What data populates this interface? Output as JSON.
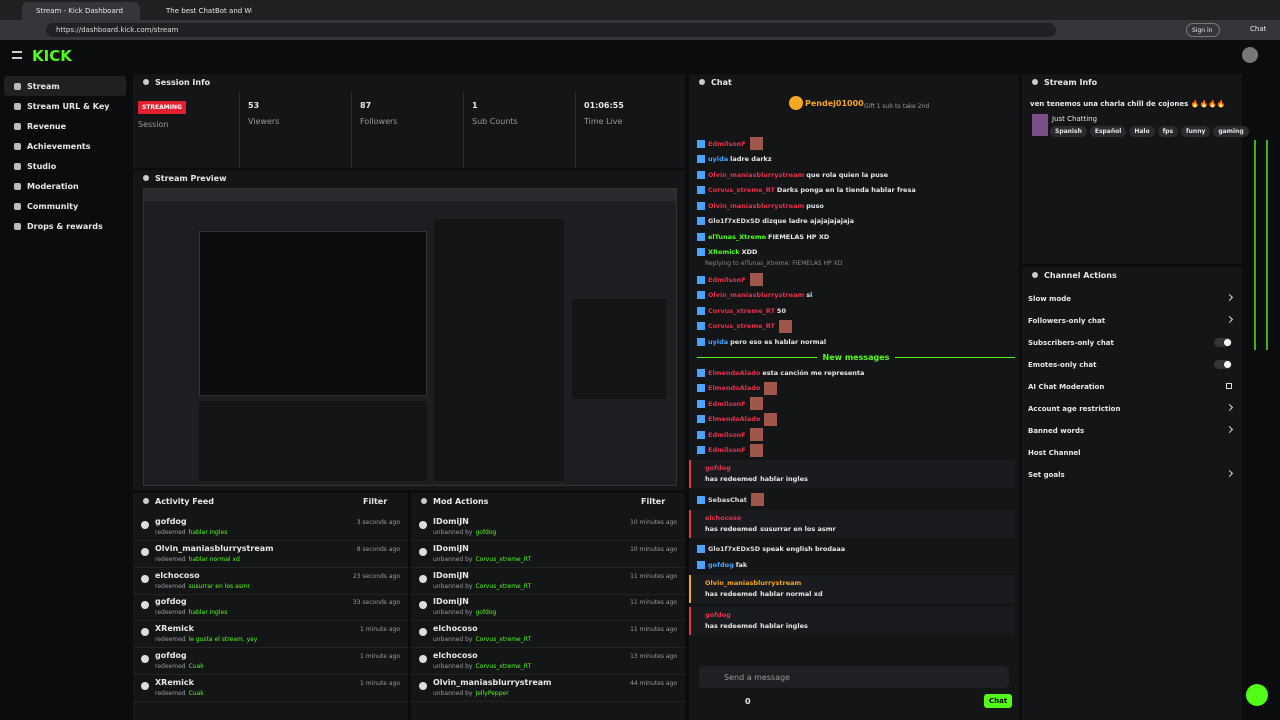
{
  "browser": {
    "tabs": [
      "Stream - Kick Dashboard",
      "The best ChatBot and Widgets"
    ],
    "url": "https://dashboard.kick.com/stream",
    "signin": "Sign in",
    "chat": "Chat"
  },
  "nav": [
    "Stream",
    "Stream URL & Key",
    "Revenue",
    "Achievements",
    "Studio",
    "Moderation",
    "Community",
    "Drops & rewards"
  ],
  "session": {
    "title": "Session Info",
    "status": "STREAMING",
    "status_label": "Session",
    "stats": [
      {
        "value": 53,
        "label": "Viewers"
      },
      {
        "value": 87,
        "label": "Followers"
      },
      {
        "value": 1,
        "label": "Sub Counts"
      },
      {
        "value": "01:06:55",
        "label": "Time Live"
      }
    ]
  },
  "preview": {
    "title": "Stream Preview"
  },
  "activity": {
    "title": "Activity Feed",
    "filter": "Filter",
    "verb": "redeemed",
    "items": [
      {
        "user": "gofdog",
        "reward": "hablar ingles",
        "time": "3 seconds ago"
      },
      {
        "user": "Olvin_maniasblurrystream",
        "reward": "hablar normal xd",
        "time": "8 seconds ago"
      },
      {
        "user": "elchocoso",
        "reward": "susurrar en los asmr",
        "time": "23 seconds ago"
      },
      {
        "user": "gofdog",
        "reward": "hablar ingles",
        "time": "33 seconds ago"
      },
      {
        "user": "XRemick",
        "reward": "le gusta el stream. yay",
        "time": "1 minute ago"
      },
      {
        "user": "gofdog",
        "reward": "Cuak",
        "time": "1 minute ago"
      },
      {
        "user": "XRemick",
        "reward": "Cuak",
        "time": "1 minute ago"
      }
    ]
  },
  "mod": {
    "title": "Mod Actions",
    "filter": "Filter",
    "verb": "unbanned by",
    "items": [
      {
        "user": "IDomiJN",
        "target": "gofdog",
        "time": "10 minutes ago"
      },
      {
        "user": "IDomiJN",
        "target": "Corvus_xtreme_RT",
        "time": "10 minutes ago"
      },
      {
        "user": "IDomiJN",
        "target": "Corvus_xtreme_RT",
        "time": "11 minutes ago"
      },
      {
        "user": "IDomiJN",
        "target": "gofdog",
        "time": "11 minutes ago"
      },
      {
        "user": "elchocoso",
        "target": "Corvus_xtreme_RT",
        "time": "11 minutes ago"
      },
      {
        "user": "elchocoso",
        "target": "Corvus_xtreme_RT",
        "time": "13 minutes ago"
      },
      {
        "user": "Olvin_maniasblurrystream",
        "target": "JellyPepper",
        "time": "44 minutes ago"
      }
    ]
  },
  "chat": {
    "title": "Chat",
    "top_gifter": "Pendej01000",
    "gift": "Gift 1 sub to take 2nd",
    "new_messages": "New messages",
    "redeem_verb": "has redeemed",
    "messages": [
      {
        "user": "EdmilsonF",
        "color": "#e0334c",
        "emote": true
      },
      {
        "user": "uyida",
        "color": "#4aa3ff",
        "text": "ladre darkz"
      },
      {
        "user": "Olvin_maniasblurrystream",
        "color": "#e0334c",
        "text": "que rola quien la puse"
      },
      {
        "user": "Corvus_xtreme_RT",
        "color": "#e0334c",
        "text": "Darks ponga en la tienda hablar fresa"
      },
      {
        "user": "Olvin_maniasblurrystream",
        "color": "#e0334c",
        "text": "puso"
      },
      {
        "user": "Glo1f7xEDxSD",
        "color": "#dddddd",
        "text": "dizque ladre ajajajajajaja"
      },
      {
        "user": "elTunas_Xtreme",
        "color": "#53fc18",
        "text": "FIEMELAS HP XD"
      },
      {
        "user": "XRemick",
        "color": "#53fc18",
        "text": "XDD"
      },
      {
        "reply": "Replying to elTunas_Xtreme: FIEMELAS HP XD"
      },
      {
        "user": "EdmilsonF",
        "color": "#e0334c",
        "emote": true
      },
      {
        "user": "Olvin_maniasblurrystream",
        "color": "#e0334c",
        "text": "si"
      },
      {
        "user": "Corvus_xtreme_RT",
        "color": "#e0334c",
        "text": "50"
      },
      {
        "user": "Corvus_xtreme_RT",
        "color": "#e0334c",
        "emote": true
      },
      {
        "user": "uyida",
        "color": "#4aa3ff",
        "text": "pero eso es hablar normal"
      },
      {
        "divider": true
      },
      {
        "user": "ElmendoAlado",
        "color": "#e0334c",
        "text": "esta canción me representa"
      },
      {
        "user": "ElmendoAlado",
        "color": "#e0334c",
        "emote": true
      },
      {
        "user": "EdmilsonF",
        "color": "#e0334c",
        "emote": true
      },
      {
        "user": "ElmendoAlado",
        "color": "#e0334c",
        "emote": true
      },
      {
        "user": "EdmilsonF",
        "color": "#e0334c",
        "emote": true
      },
      {
        "user": "EdmilsonF",
        "color": "#e0334c",
        "emote": true
      },
      {
        "redeem": "gofdog",
        "color": "#e0334c",
        "reward": "hablar ingles"
      },
      {
        "user": "SebasChat",
        "color": "#dddddd",
        "emote": true
      },
      {
        "redeem": "elchocoso",
        "color": "#e0334c",
        "reward": "susurrar en los asmr"
      },
      {
        "user": "Glo1f7xEDxSD",
        "color": "#dddddd",
        "text": "speak english brodaaa"
      },
      {
        "user": "gofdog",
        "color": "#4aa3ff",
        "text": "fak"
      },
      {
        "redeem": "Olvin_maniasblurrystream",
        "color": "#f5a623",
        "reward": "hablar normal xd"
      },
      {
        "redeem": "gofdog",
        "color": "#e0334c",
        "reward": "hablar ingles"
      }
    ],
    "placeholder": "Send a message",
    "count": 0,
    "send": "Chat"
  },
  "stream_info": {
    "title": "Stream Info",
    "stream_title": "ven tenemos una charla chill de cojones 🔥🔥🔥🔥",
    "category": "Just Chatting",
    "tags": [
      "Spanish",
      "Español",
      "Halo",
      "fps",
      "funny",
      "gaming"
    ]
  },
  "channel_actions": {
    "title": "Channel Actions",
    "items": [
      {
        "label": "Slow mode",
        "control": "chevron"
      },
      {
        "label": "Followers-only chat",
        "control": "chevron"
      },
      {
        "label": "Subscribers-only chat",
        "control": "toggle"
      },
      {
        "label": "Emotes-only chat",
        "control": "toggle"
      },
      {
        "label": "AI Chat Moderation",
        "control": "external"
      },
      {
        "label": "Account age restriction",
        "control": "chevron"
      },
      {
        "label": "Banned words",
        "control": "chevron"
      },
      {
        "label": "Host Channel",
        "control": "none"
      },
      {
        "label": "Set goals",
        "control": "chevron"
      }
    ]
  }
}
